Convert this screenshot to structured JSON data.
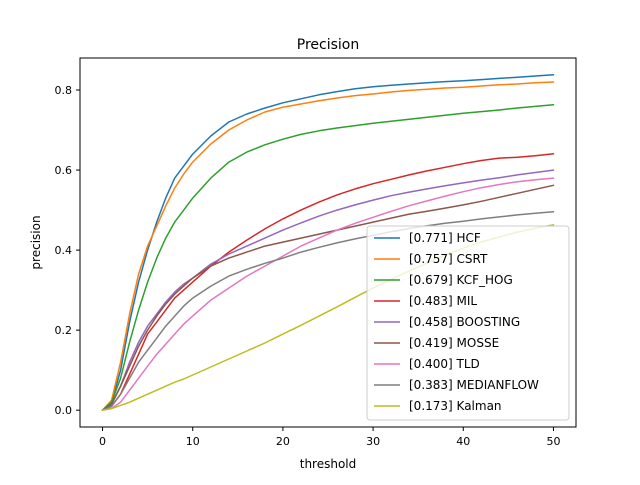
{
  "chart_data": {
    "type": "line",
    "title": "Precision",
    "xlabel": "threshold",
    "ylabel": "precision",
    "xlim": [
      -2.5,
      52.5
    ],
    "ylim": [
      -0.042,
      0.88
    ],
    "xticks": [
      0,
      10,
      20,
      30,
      40,
      50
    ],
    "yticks": [
      0.0,
      0.2,
      0.4,
      0.6,
      0.8
    ],
    "xtick_labels": [
      "0",
      "10",
      "20",
      "30",
      "40",
      "50"
    ],
    "ytick_labels": [
      "0.0",
      "0.2",
      "0.4",
      "0.6",
      "0.8"
    ],
    "grid": false,
    "legend_position": "lower right",
    "x": [
      0,
      1,
      2,
      3,
      4,
      5,
      6,
      7,
      8,
      9,
      10,
      12,
      14,
      16,
      18,
      20,
      22,
      24,
      26,
      28,
      30,
      32,
      34,
      36,
      38,
      40,
      42,
      44,
      46,
      48,
      50
    ],
    "series": [
      {
        "name": "[0.771] HCF",
        "color": "#1f77b4",
        "values": [
          0.0,
          0.02,
          0.1,
          0.22,
          0.32,
          0.4,
          0.47,
          0.53,
          0.58,
          0.61,
          0.64,
          0.685,
          0.72,
          0.74,
          0.755,
          0.768,
          0.778,
          0.788,
          0.796,
          0.803,
          0.808,
          0.812,
          0.815,
          0.818,
          0.821,
          0.823,
          0.826,
          0.829,
          0.832,
          0.835,
          0.838
        ]
      },
      {
        "name": "[0.757] CSRT",
        "color": "#ff7f0e",
        "values": [
          0.0,
          0.025,
          0.12,
          0.24,
          0.34,
          0.41,
          0.46,
          0.51,
          0.555,
          0.59,
          0.62,
          0.665,
          0.7,
          0.725,
          0.745,
          0.757,
          0.765,
          0.773,
          0.78,
          0.786,
          0.79,
          0.795,
          0.799,
          0.802,
          0.805,
          0.807,
          0.81,
          0.813,
          0.815,
          0.818,
          0.82
        ]
      },
      {
        "name": "[0.679] KCF_HOG",
        "color": "#2ca02c",
        "values": [
          0.0,
          0.02,
          0.08,
          0.17,
          0.25,
          0.32,
          0.38,
          0.43,
          0.47,
          0.5,
          0.53,
          0.58,
          0.62,
          0.645,
          0.663,
          0.677,
          0.689,
          0.698,
          0.705,
          0.711,
          0.717,
          0.722,
          0.727,
          0.732,
          0.737,
          0.742,
          0.746,
          0.75,
          0.755,
          0.759,
          0.763
        ]
      },
      {
        "name": "[0.483] MIL",
        "color": "#d62728",
        "values": [
          0.0,
          0.01,
          0.04,
          0.09,
          0.14,
          0.19,
          0.22,
          0.25,
          0.28,
          0.3,
          0.32,
          0.36,
          0.395,
          0.425,
          0.453,
          0.478,
          0.5,
          0.52,
          0.538,
          0.553,
          0.566,
          0.577,
          0.588,
          0.598,
          0.607,
          0.616,
          0.624,
          0.63,
          0.632,
          0.636,
          0.641
        ]
      },
      {
        "name": "[0.458] BOOSTING",
        "color": "#9467bd",
        "values": [
          0.0,
          0.015,
          0.06,
          0.12,
          0.17,
          0.21,
          0.24,
          0.27,
          0.295,
          0.315,
          0.33,
          0.365,
          0.39,
          0.41,
          0.43,
          0.45,
          0.468,
          0.485,
          0.5,
          0.513,
          0.525,
          0.536,
          0.545,
          0.553,
          0.561,
          0.568,
          0.575,
          0.581,
          0.588,
          0.594,
          0.6
        ]
      },
      {
        "name": "[0.419] MOSSE",
        "color": "#8c564b",
        "values": [
          0.0,
          0.015,
          0.06,
          0.11,
          0.16,
          0.2,
          0.235,
          0.265,
          0.29,
          0.31,
          0.33,
          0.36,
          0.38,
          0.395,
          0.41,
          0.42,
          0.43,
          0.44,
          0.45,
          0.46,
          0.47,
          0.48,
          0.49,
          0.497,
          0.505,
          0.513,
          0.522,
          0.532,
          0.542,
          0.552,
          0.562
        ]
      },
      {
        "name": "[0.400] TLD",
        "color": "#e377c2",
        "values": [
          0.0,
          0.005,
          0.02,
          0.05,
          0.08,
          0.11,
          0.14,
          0.165,
          0.19,
          0.215,
          0.235,
          0.275,
          0.305,
          0.335,
          0.36,
          0.385,
          0.41,
          0.43,
          0.45,
          0.467,
          0.482,
          0.497,
          0.511,
          0.523,
          0.535,
          0.546,
          0.556,
          0.564,
          0.571,
          0.576,
          0.58
        ]
      },
      {
        "name": "[0.383] MEDIANFLOW",
        "color": "#7f7f7f",
        "values": [
          0.0,
          0.01,
          0.04,
          0.08,
          0.12,
          0.15,
          0.18,
          0.21,
          0.235,
          0.26,
          0.28,
          0.31,
          0.335,
          0.352,
          0.367,
          0.38,
          0.395,
          0.407,
          0.418,
          0.428,
          0.437,
          0.446,
          0.454,
          0.461,
          0.467,
          0.472,
          0.478,
          0.483,
          0.488,
          0.492,
          0.496
        ]
      },
      {
        "name": "[0.173] Kalman",
        "color": "#bcbd22",
        "values": [
          0.0,
          0.004,
          0.012,
          0.02,
          0.03,
          0.04,
          0.05,
          0.06,
          0.07,
          0.078,
          0.088,
          0.108,
          0.128,
          0.148,
          0.168,
          0.19,
          0.212,
          0.235,
          0.258,
          0.282,
          0.305,
          0.327,
          0.348,
          0.368,
          0.388,
          0.405,
          0.42,
          0.433,
          0.445,
          0.455,
          0.463
        ]
      }
    ]
  }
}
